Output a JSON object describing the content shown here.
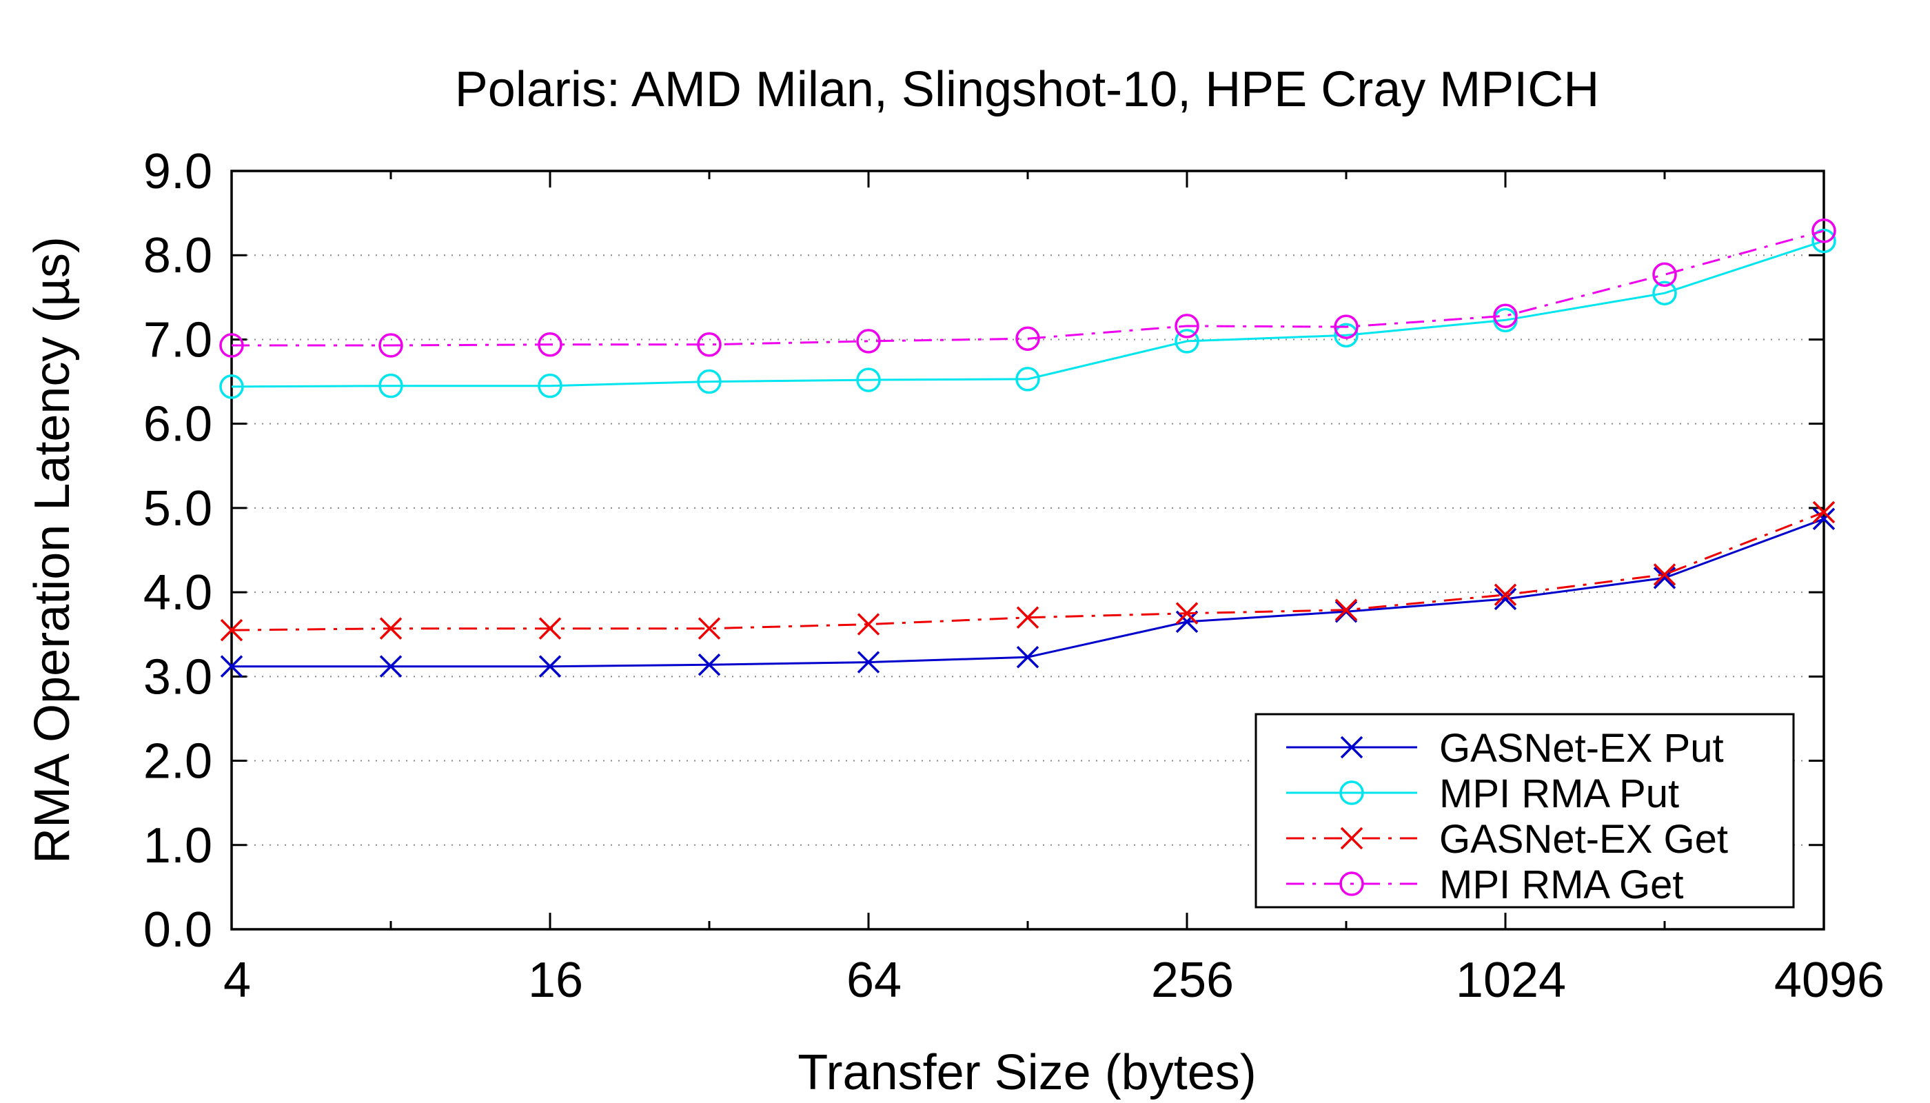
{
  "chart_data": {
    "type": "line",
    "title": "Polaris: AMD Milan, Slingshot-10, HPE Cray MPICH",
    "xlabel": "Transfer Size (bytes)",
    "ylabel": "RMA Operation Latency (µs)",
    "xscale": "log2",
    "xlim": [
      4,
      4096
    ],
    "ylim": [
      0,
      9
    ],
    "grid": "horizontal-dotted",
    "legend_position": "bottom-right",
    "x": [
      4,
      8,
      16,
      32,
      64,
      128,
      256,
      512,
      1024,
      2048,
      4096
    ],
    "x_ticks": [
      "4",
      "16",
      "64",
      "256",
      "1024",
      "4096"
    ],
    "x_tick_values": [
      4,
      16,
      64,
      256,
      1024,
      4096
    ],
    "y_ticks": [
      "0.0",
      "1.0",
      "2.0",
      "3.0",
      "4.0",
      "5.0",
      "6.0",
      "7.0",
      "8.0",
      "9.0"
    ],
    "y_tick_values": [
      0,
      1,
      2,
      3,
      4,
      5,
      6,
      7,
      8,
      9
    ],
    "series": [
      {
        "name": "GASNet-EX Put",
        "color": "#0000cc",
        "marker": "cross",
        "line": "solid",
        "values": [
          3.12,
          3.12,
          3.12,
          3.14,
          3.17,
          3.23,
          3.65,
          3.77,
          3.92,
          4.17,
          4.87
        ]
      },
      {
        "name": "MPI RMA Put",
        "color": "#00e5ee",
        "marker": "circle",
        "line": "solid",
        "values": [
          6.44,
          6.45,
          6.45,
          6.5,
          6.52,
          6.53,
          6.98,
          7.05,
          7.23,
          7.55,
          8.17
        ]
      },
      {
        "name": "GASNet-EX Get",
        "color": "#ee0000",
        "marker": "cross",
        "line": "dashdot",
        "values": [
          3.55,
          3.57,
          3.57,
          3.57,
          3.62,
          3.7,
          3.75,
          3.79,
          3.97,
          4.21,
          4.95
        ]
      },
      {
        "name": "MPI RMA Get",
        "color": "#ee00ee",
        "marker": "circle",
        "line": "dashdot",
        "values": [
          6.93,
          6.93,
          6.94,
          6.94,
          6.98,
          7.01,
          7.16,
          7.15,
          7.28,
          7.77,
          8.29
        ]
      }
    ]
  }
}
